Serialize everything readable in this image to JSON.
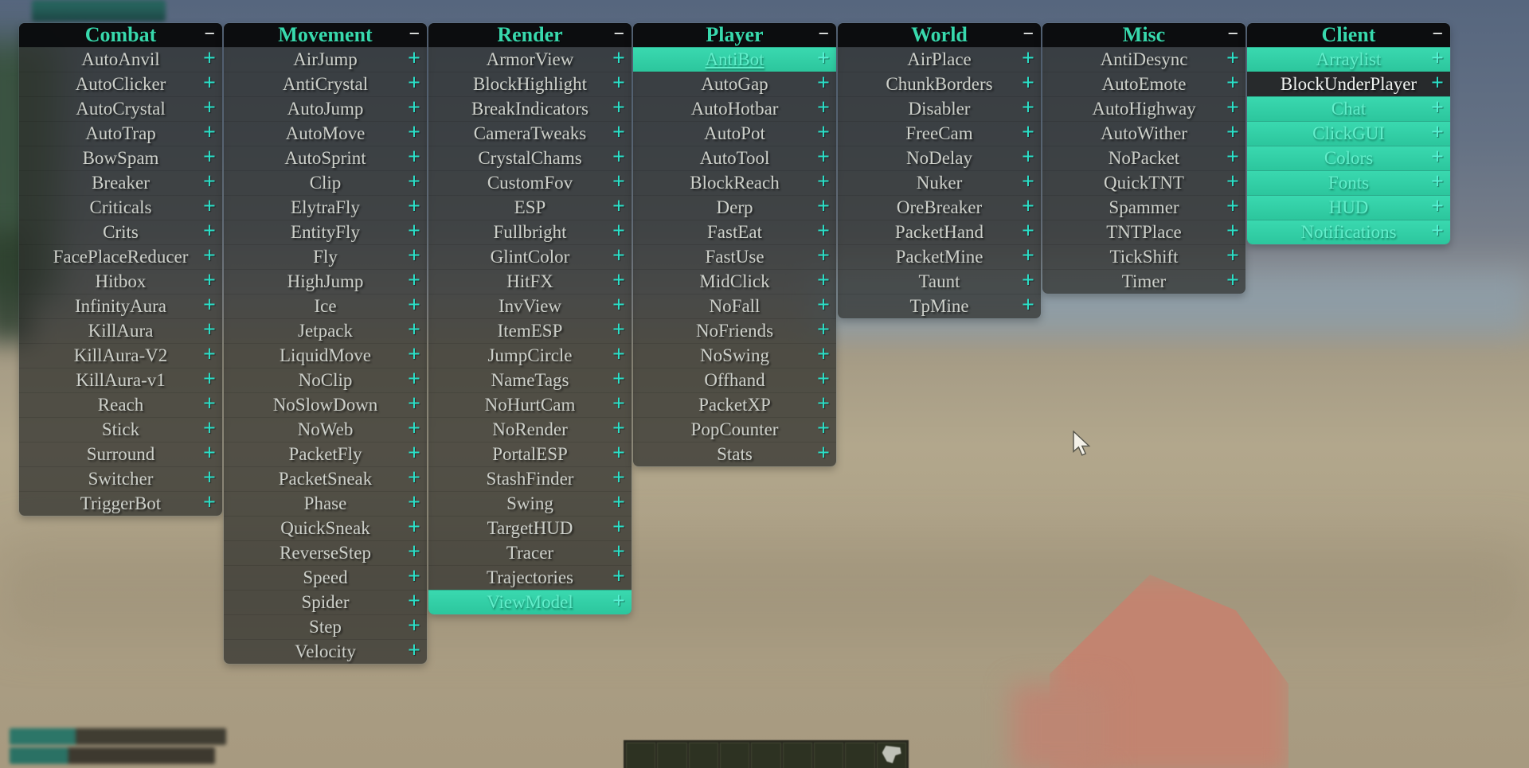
{
  "ui": {
    "accent_color": "#38d9ad",
    "plus_color": "#2be0c8",
    "enabled_row_color": "#30cda4",
    "label_color": "#cdd0ca",
    "minus_color": "#f5f7f4",
    "collapse_glyph": "−",
    "expand_glyph": "+"
  },
  "panels": [
    {
      "title": "Combat",
      "modules": [
        {
          "label": "AutoAnvil",
          "enabled": false
        },
        {
          "label": "AutoClicker",
          "enabled": false
        },
        {
          "label": "AutoCrystal",
          "enabled": false
        },
        {
          "label": "AutoTrap",
          "enabled": false
        },
        {
          "label": "BowSpam",
          "enabled": false
        },
        {
          "label": "Breaker",
          "enabled": false
        },
        {
          "label": "Criticals",
          "enabled": false
        },
        {
          "label": "Crits",
          "enabled": false
        },
        {
          "label": "FacePlaceReducer",
          "enabled": false
        },
        {
          "label": "Hitbox",
          "enabled": false
        },
        {
          "label": "InfinityAura",
          "enabled": false
        },
        {
          "label": "KillAura",
          "enabled": false
        },
        {
          "label": "KillAura-V2",
          "enabled": false
        },
        {
          "label": "KillAura-v1",
          "enabled": false
        },
        {
          "label": "Reach",
          "enabled": false
        },
        {
          "label": "Stick",
          "enabled": false
        },
        {
          "label": "Surround",
          "enabled": false
        },
        {
          "label": "Switcher",
          "enabled": false
        },
        {
          "label": "TriggerBot",
          "enabled": false
        }
      ]
    },
    {
      "title": "Movement",
      "modules": [
        {
          "label": "AirJump",
          "enabled": false
        },
        {
          "label": "AntiCrystal",
          "enabled": false
        },
        {
          "label": "AutoJump",
          "enabled": false
        },
        {
          "label": "AutoMove",
          "enabled": false
        },
        {
          "label": "AutoSprint",
          "enabled": false
        },
        {
          "label": "Clip",
          "enabled": false
        },
        {
          "label": "ElytraFly",
          "enabled": false
        },
        {
          "label": "EntityFly",
          "enabled": false
        },
        {
          "label": "Fly",
          "enabled": false
        },
        {
          "label": "HighJump",
          "enabled": false
        },
        {
          "label": "Ice",
          "enabled": false
        },
        {
          "label": "Jetpack",
          "enabled": false
        },
        {
          "label": "LiquidMove",
          "enabled": false
        },
        {
          "label": "NoClip",
          "enabled": false
        },
        {
          "label": "NoSlowDown",
          "enabled": false
        },
        {
          "label": "NoWeb",
          "enabled": false
        },
        {
          "label": "PacketFly",
          "enabled": false
        },
        {
          "label": "PacketSneak",
          "enabled": false
        },
        {
          "label": "Phase",
          "enabled": false
        },
        {
          "label": "QuickSneak",
          "enabled": false
        },
        {
          "label": "ReverseStep",
          "enabled": false
        },
        {
          "label": "Speed",
          "enabled": false
        },
        {
          "label": "Spider",
          "enabled": false
        },
        {
          "label": "Step",
          "enabled": false
        },
        {
          "label": "Velocity",
          "enabled": false
        }
      ]
    },
    {
      "title": "Render",
      "modules": [
        {
          "label": "ArmorView",
          "enabled": false
        },
        {
          "label": "BlockHighlight",
          "enabled": false
        },
        {
          "label": "BreakIndicators",
          "enabled": false
        },
        {
          "label": "CameraTweaks",
          "enabled": false
        },
        {
          "label": "CrystalChams",
          "enabled": false
        },
        {
          "label": "CustomFov",
          "enabled": false
        },
        {
          "label": "ESP",
          "enabled": false
        },
        {
          "label": "Fullbright",
          "enabled": false
        },
        {
          "label": "GlintColor",
          "enabled": false
        },
        {
          "label": "HitFX",
          "enabled": false
        },
        {
          "label": "InvView",
          "enabled": false
        },
        {
          "label": "ItemESP",
          "enabled": false
        },
        {
          "label": "JumpCircle",
          "enabled": false
        },
        {
          "label": "NameTags",
          "enabled": false
        },
        {
          "label": "NoHurtCam",
          "enabled": false
        },
        {
          "label": "NoRender",
          "enabled": false
        },
        {
          "label": "PortalESP",
          "enabled": false
        },
        {
          "label": "StashFinder",
          "enabled": false
        },
        {
          "label": "Swing",
          "enabled": false
        },
        {
          "label": "TargetHUD",
          "enabled": false
        },
        {
          "label": "Tracer",
          "enabled": false
        },
        {
          "label": "Trajectories",
          "enabled": false
        },
        {
          "label": "ViewModel",
          "enabled": true
        }
      ]
    },
    {
      "title": "Player",
      "modules": [
        {
          "label": "AntiBot",
          "enabled": true,
          "underlined": true
        },
        {
          "label": "AutoGap",
          "enabled": false
        },
        {
          "label": "AutoHotbar",
          "enabled": false
        },
        {
          "label": "AutoPot",
          "enabled": false
        },
        {
          "label": "AutoTool",
          "enabled": false
        },
        {
          "label": "BlockReach",
          "enabled": false
        },
        {
          "label": "Derp",
          "enabled": false
        },
        {
          "label": "FastEat",
          "enabled": false
        },
        {
          "label": "FastUse",
          "enabled": false
        },
        {
          "label": "MidClick",
          "enabled": false
        },
        {
          "label": "NoFall",
          "enabled": false
        },
        {
          "label": "NoFriends",
          "enabled": false
        },
        {
          "label": "NoSwing",
          "enabled": false
        },
        {
          "label": "Offhand",
          "enabled": false
        },
        {
          "label": "PacketXP",
          "enabled": false
        },
        {
          "label": "PopCounter",
          "enabled": false
        },
        {
          "label": "Stats",
          "enabled": false
        }
      ]
    },
    {
      "title": "World",
      "modules": [
        {
          "label": "AirPlace",
          "enabled": false
        },
        {
          "label": "ChunkBorders",
          "enabled": false
        },
        {
          "label": "Disabler",
          "enabled": false
        },
        {
          "label": "FreeCam",
          "enabled": false
        },
        {
          "label": "NoDelay",
          "enabled": false
        },
        {
          "label": "Nuker",
          "enabled": false
        },
        {
          "label": "OreBreaker",
          "enabled": false
        },
        {
          "label": "PacketHand",
          "enabled": false
        },
        {
          "label": "PacketMine",
          "enabled": false
        },
        {
          "label": "Taunt",
          "enabled": false
        },
        {
          "label": "TpMine",
          "enabled": false
        }
      ]
    },
    {
      "title": "Misc",
      "modules": [
        {
          "label": "AntiDesync",
          "enabled": false
        },
        {
          "label": "AutoEmote",
          "enabled": false
        },
        {
          "label": "AutoHighway",
          "enabled": false
        },
        {
          "label": "AutoWither",
          "enabled": false
        },
        {
          "label": "NoPacket",
          "enabled": false
        },
        {
          "label": "QuickTNT",
          "enabled": false
        },
        {
          "label": "Spammer",
          "enabled": false
        },
        {
          "label": "TNTPlace",
          "enabled": false
        },
        {
          "label": "TickShift",
          "enabled": false
        },
        {
          "label": "Timer",
          "enabled": false
        }
      ]
    },
    {
      "title": "Client",
      "modules": [
        {
          "label": "Arraylist",
          "enabled": true
        },
        {
          "label": "BlockUnderPlayer",
          "enabled": false,
          "variant": "dark"
        },
        {
          "label": "Chat",
          "enabled": true
        },
        {
          "label": "ClickGUI",
          "enabled": true
        },
        {
          "label": "Colors",
          "enabled": true
        },
        {
          "label": "Fonts",
          "enabled": true
        },
        {
          "label": "HUD",
          "enabled": true
        },
        {
          "label": "Notifications",
          "enabled": true
        }
      ]
    }
  ],
  "hotbar": {
    "slot_count": 9,
    "occupied_slot": 9
  }
}
